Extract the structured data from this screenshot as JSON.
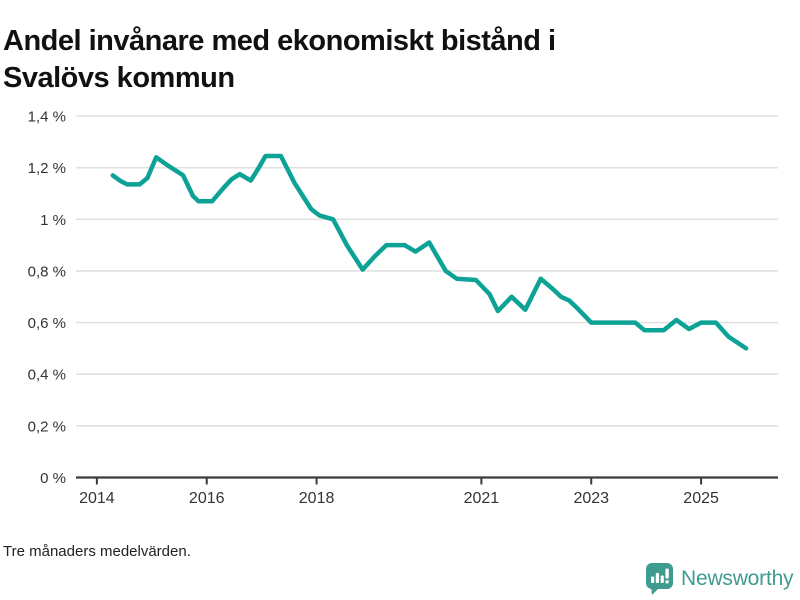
{
  "header": {
    "title_line1": "Andel invånare med ekonomiskt bistånd i",
    "title_line2": "Svalövs kommun"
  },
  "footnote": "Tre månaders medelvärden.",
  "branding": {
    "name": "Newsworthy",
    "icon": "speech-bubble-with-bar-chart-and-exclamation"
  },
  "colors": {
    "line": "#0da296",
    "grid": "#e1e1e1",
    "axis": "#3b3b3b",
    "tick_text": "#333333",
    "brand_teal": "#3e9b8f"
  },
  "chart_data": {
    "type": "line",
    "title": "Andel invånare med ekonomiskt bistånd i Svalövs kommun",
    "subtitle": "Tre månaders medelvärden.",
    "unit": "%",
    "xlabel": "",
    "ylabel": "",
    "grid": "horizontal",
    "legend": "none",
    "xlim": [
      2013.62,
      2026.4
    ],
    "ylim": [
      0,
      1.4
    ],
    "yticks": [
      {
        "value": 0,
        "label": "0 %"
      },
      {
        "value": 0.2,
        "label": "0,2 %"
      },
      {
        "value": 0.4,
        "label": "0,4 %"
      },
      {
        "value": 0.6,
        "label": "0,6 %"
      },
      {
        "value": 0.8,
        "label": "0,8 %"
      },
      {
        "value": 1.0,
        "label": "1 %"
      },
      {
        "value": 1.2,
        "label": "1,2 %"
      },
      {
        "value": 1.4,
        "label": "1,4 %"
      }
    ],
    "xticks": [
      {
        "value": 2014,
        "label": "2014"
      },
      {
        "value": 2016,
        "label": "2016"
      },
      {
        "value": 2018,
        "label": "2018"
      },
      {
        "value": 2021,
        "label": "2021"
      },
      {
        "value": 2023,
        "label": "2023"
      },
      {
        "value": 2025,
        "label": "2025"
      }
    ],
    "series": [
      {
        "name": "Andel invånare med ekonomiskt bistånd",
        "points": [
          [
            2014.29,
            1.17
          ],
          [
            2014.42,
            1.15
          ],
          [
            2014.55,
            1.135
          ],
          [
            2014.78,
            1.135
          ],
          [
            2014.92,
            1.16
          ],
          [
            2015.08,
            1.24
          ],
          [
            2015.28,
            1.21
          ],
          [
            2015.5,
            1.18
          ],
          [
            2015.57,
            1.17
          ],
          [
            2015.75,
            1.09
          ],
          [
            2015.85,
            1.07
          ],
          [
            2016.1,
            1.07
          ],
          [
            2016.3,
            1.12
          ],
          [
            2016.45,
            1.155
          ],
          [
            2016.6,
            1.175
          ],
          [
            2016.8,
            1.15
          ],
          [
            2016.95,
            1.2
          ],
          [
            2017.07,
            1.245
          ],
          [
            2017.35,
            1.245
          ],
          [
            2017.6,
            1.14
          ],
          [
            2017.9,
            1.04
          ],
          [
            2018.05,
            1.015
          ],
          [
            2018.3,
            1.0
          ],
          [
            2018.55,
            0.9
          ],
          [
            2018.84,
            0.805
          ],
          [
            2019.05,
            0.855
          ],
          [
            2019.27,
            0.9
          ],
          [
            2019.6,
            0.9
          ],
          [
            2019.8,
            0.875
          ],
          [
            2020.05,
            0.91
          ],
          [
            2020.35,
            0.8
          ],
          [
            2020.55,
            0.77
          ],
          [
            2020.9,
            0.765
          ],
          [
            2021.15,
            0.71
          ],
          [
            2021.3,
            0.645
          ],
          [
            2021.55,
            0.7
          ],
          [
            2021.8,
            0.65
          ],
          [
            2022.08,
            0.77
          ],
          [
            2022.3,
            0.73
          ],
          [
            2022.45,
            0.7
          ],
          [
            2022.6,
            0.685
          ],
          [
            2022.75,
            0.655
          ],
          [
            2023.0,
            0.6
          ],
          [
            2023.8,
            0.6
          ],
          [
            2023.97,
            0.57
          ],
          [
            2024.32,
            0.57
          ],
          [
            2024.55,
            0.61
          ],
          [
            2024.78,
            0.575
          ],
          [
            2025.0,
            0.6
          ],
          [
            2025.27,
            0.6
          ],
          [
            2025.5,
            0.545
          ],
          [
            2025.82,
            0.5
          ]
        ]
      }
    ]
  }
}
